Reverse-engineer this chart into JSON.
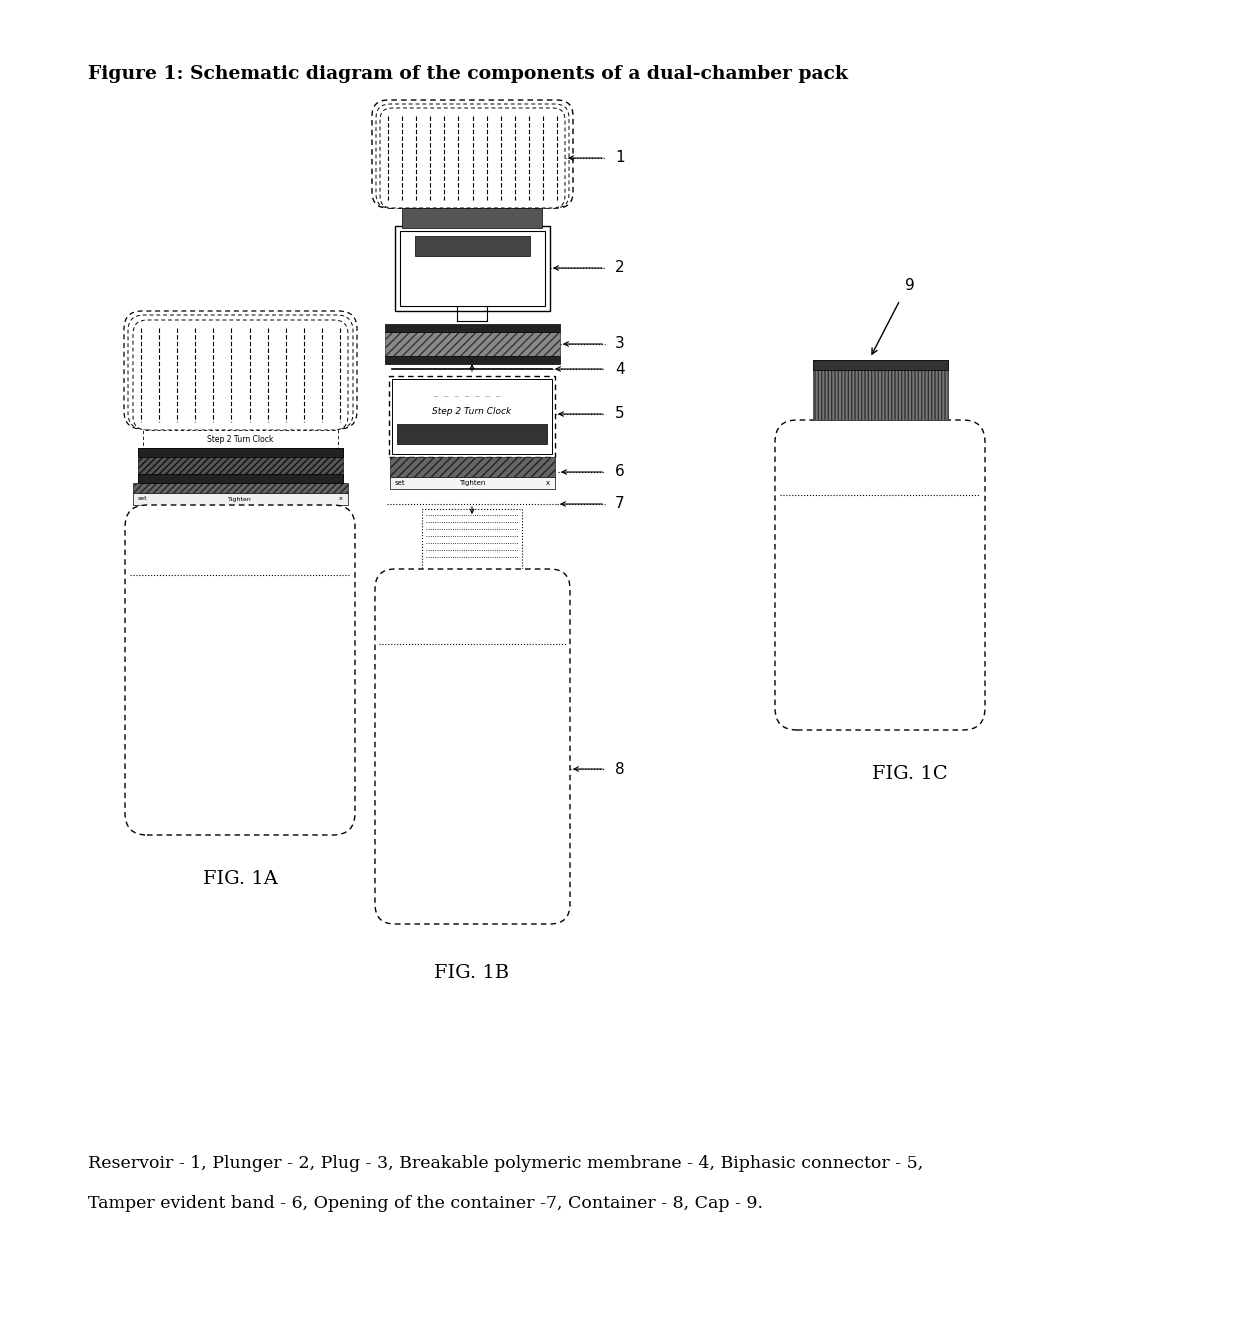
{
  "title": "Figure 1: Schematic diagram of the components of a dual-chamber pack",
  "title_fontsize": 13.5,
  "caption_line1": "Reservoir - 1, Plunger - 2, Plug - 3, Breakable polymeric membrane - 4, Biphasic connector - 5,",
  "caption_line2": "Tamper evident band - 6, Opening of the container -7, Container - 8, Cap - 9.",
  "caption_fontsize": 12.5,
  "fig1a_label": "FIG. 1A",
  "fig1b_label": "FIG. 1B",
  "fig1c_label": "FIG. 1C",
  "bg_color": "#ffffff"
}
